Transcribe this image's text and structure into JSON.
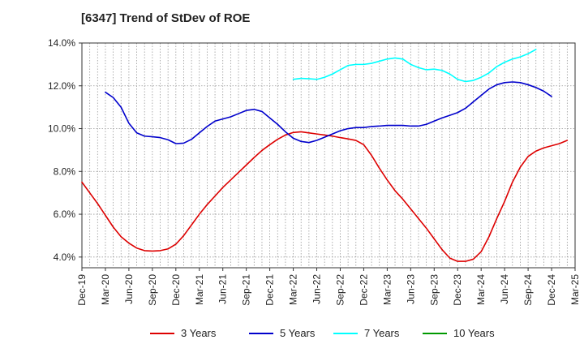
{
  "chart_data": {
    "type": "line",
    "title": "[6347]  Trend of StDev of ROE",
    "xlabel": "",
    "ylabel": "",
    "x_ticks": [
      "Dec-19",
      "Mar-20",
      "Jun-20",
      "Sep-20",
      "Dec-20",
      "Mar-21",
      "Jun-21",
      "Sep-21",
      "Dec-21",
      "Mar-22",
      "Jun-22",
      "Sep-22",
      "Dec-22",
      "Mar-23",
      "Jun-23",
      "Sep-23",
      "Dec-23",
      "Mar-24",
      "Jun-24",
      "Sep-24",
      "Dec-24",
      "Mar-25"
    ],
    "x_months_per_point": 1,
    "ylim": [
      3.5,
      14.0
    ],
    "y_ticks": [
      4.0,
      6.0,
      8.0,
      10.0,
      12.0,
      14.0
    ],
    "y_tick_labels": [
      "4.0%",
      "6.0%",
      "8.0%",
      "10.0%",
      "12.0%",
      "14.0%"
    ],
    "grid": true,
    "legend_position": "bottom",
    "series": [
      {
        "name": "3 Years",
        "color": "#dd0000",
        "start_index": 0,
        "values": [
          7.5,
          7.0,
          6.5,
          5.95,
          5.4,
          4.95,
          4.65,
          4.42,
          4.3,
          4.28,
          4.3,
          4.38,
          4.6,
          5.0,
          5.5,
          6.0,
          6.45,
          6.85,
          7.25,
          7.6,
          7.95,
          8.3,
          8.65,
          8.98,
          9.25,
          9.5,
          9.7,
          9.82,
          9.85,
          9.8,
          9.75,
          9.7,
          9.65,
          9.58,
          9.52,
          9.45,
          9.25,
          8.75,
          8.15,
          7.6,
          7.1,
          6.7,
          6.25,
          5.8,
          5.35,
          4.85,
          4.35,
          3.95,
          3.8,
          3.8,
          3.9,
          4.25,
          4.95,
          5.8,
          6.6,
          7.5,
          8.2,
          8.7,
          8.95,
          9.1,
          9.2,
          9.3,
          9.45
        ]
      },
      {
        "name": "5 Years",
        "color": "#0000cc",
        "start_index": 3,
        "values": [
          11.7,
          11.45,
          11.0,
          10.25,
          9.8,
          9.65,
          9.62,
          9.58,
          9.48,
          9.3,
          9.32,
          9.5,
          9.8,
          10.1,
          10.35,
          10.45,
          10.55,
          10.7,
          10.85,
          10.9,
          10.8,
          10.5,
          10.2,
          9.85,
          9.55,
          9.4,
          9.35,
          9.45,
          9.6,
          9.75,
          9.9,
          10.0,
          10.05,
          10.05,
          10.1,
          10.12,
          10.15,
          10.15,
          10.15,
          10.12,
          10.12,
          10.2,
          10.35,
          10.5,
          10.62,
          10.75,
          10.95,
          11.25,
          11.55,
          11.85,
          12.05,
          12.15,
          12.18,
          12.15,
          12.05,
          11.92,
          11.75,
          11.5
        ]
      },
      {
        "name": "7 Years",
        "color": "#00ffff",
        "start_index": 27,
        "values": [
          12.3,
          12.35,
          12.33,
          12.3,
          12.4,
          12.55,
          12.75,
          12.95,
          13.0,
          13.0,
          13.05,
          13.15,
          13.25,
          13.3,
          13.25,
          13.0,
          12.85,
          12.75,
          12.78,
          12.72,
          12.55,
          12.3,
          12.2,
          12.25,
          12.4,
          12.6,
          12.9,
          13.1,
          13.25,
          13.35,
          13.5,
          13.7
        ]
      },
      {
        "name": "10 Years",
        "color": "#009900",
        "start_index": 0,
        "values": []
      }
    ]
  }
}
